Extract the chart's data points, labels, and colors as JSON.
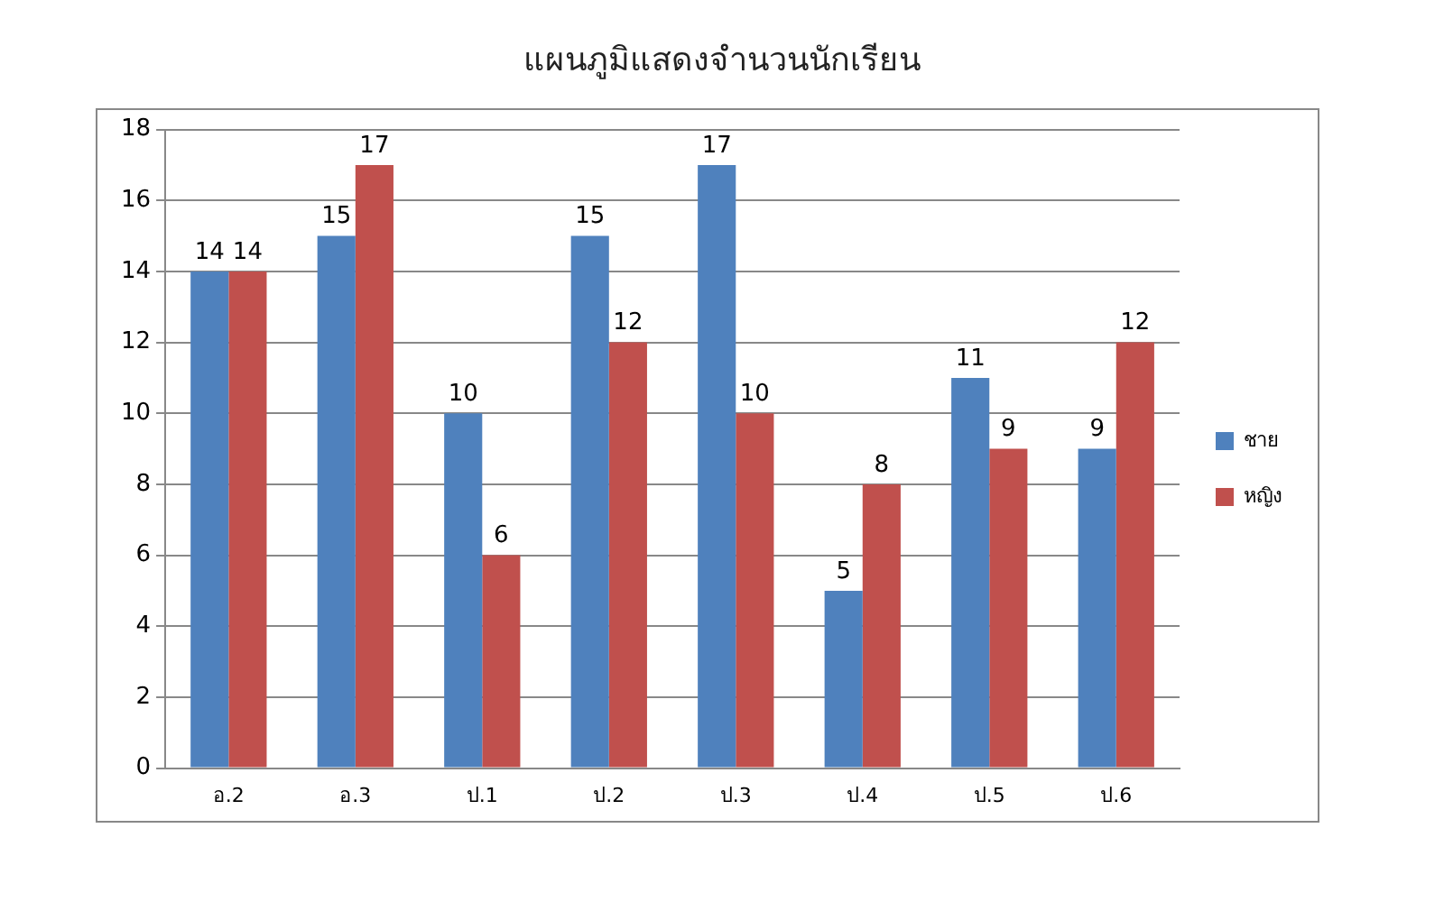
{
  "chart_data": {
    "type": "bar",
    "title": "แผนภูมิแสดงจำนวนนักเรียน",
    "categories": [
      "อ.2",
      "อ.3",
      "ป.1",
      "ป.2",
      "ป.3",
      "ป.4",
      "ป.5",
      "ป.6"
    ],
    "series": [
      {
        "name": "ชาย",
        "color": "#4f81bd",
        "values": [
          14,
          15,
          10,
          15,
          17,
          5,
          11,
          9
        ]
      },
      {
        "name": "หญิง",
        "color": "#c0504d",
        "values": [
          14,
          17,
          6,
          12,
          10,
          8,
          9,
          12
        ]
      }
    ],
    "ylim": [
      0,
      18
    ],
    "yticks": [
      0,
      2,
      4,
      6,
      8,
      10,
      12,
      14,
      16,
      18
    ],
    "grid": "y",
    "legend": "right",
    "data_labels": true
  }
}
